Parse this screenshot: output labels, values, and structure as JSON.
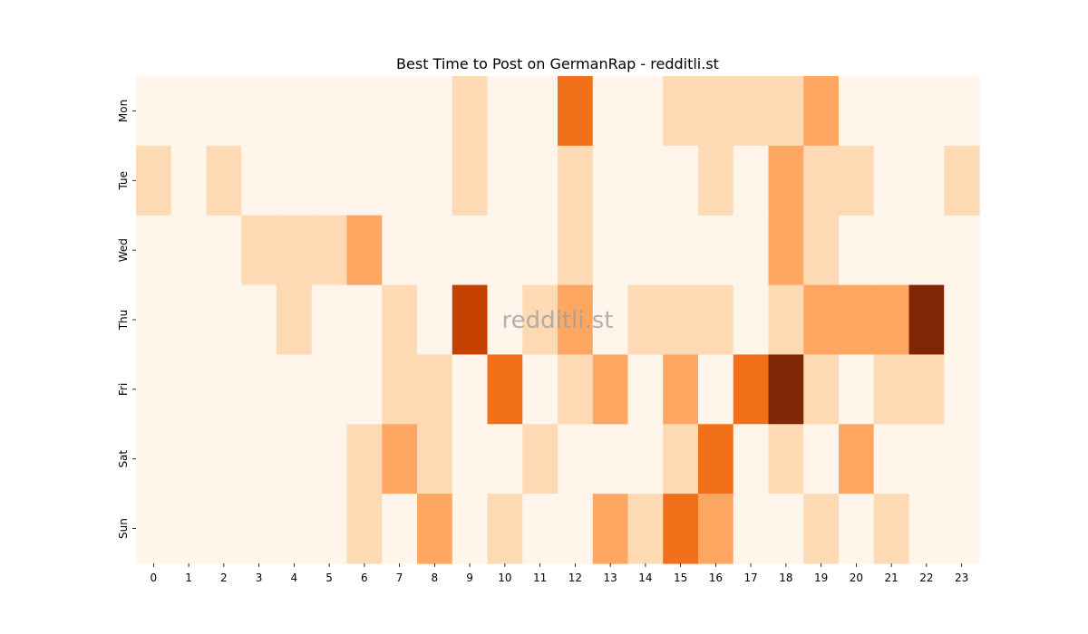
{
  "chart_data": {
    "type": "heatmap",
    "title": "Best Time to Post on GermanRap - redditli.st",
    "watermark": "redditli.st",
    "xlabel": "",
    "ylabel": "",
    "x_categories": [
      "0",
      "1",
      "2",
      "3",
      "4",
      "5",
      "6",
      "7",
      "8",
      "9",
      "10",
      "11",
      "12",
      "13",
      "14",
      "15",
      "16",
      "17",
      "18",
      "19",
      "20",
      "21",
      "22",
      "23"
    ],
    "y_categories": [
      "Mon",
      "Tue",
      "Wed",
      "Thu",
      "Fri",
      "Sat",
      "Sun"
    ],
    "value_range": [
      0,
      5
    ],
    "colormap": [
      "#fff5eb",
      "#fdd9b4",
      "#fda762",
      "#f3701b",
      "#c54102",
      "#7f2704"
    ],
    "values": [
      [
        0,
        0,
        0,
        0,
        0,
        0,
        0,
        0,
        0,
        1,
        0,
        0,
        3,
        0,
        0,
        1,
        1,
        1,
        1,
        2,
        0,
        0,
        0,
        0
      ],
      [
        1,
        0,
        1,
        0,
        0,
        0,
        0,
        0,
        0,
        1,
        0,
        0,
        1,
        0,
        0,
        0,
        1,
        0,
        2,
        1,
        1,
        0,
        0,
        1
      ],
      [
        0,
        0,
        0,
        1,
        1,
        1,
        2,
        0,
        0,
        0,
        0,
        0,
        1,
        0,
        0,
        0,
        0,
        0,
        2,
        1,
        0,
        0,
        0,
        0
      ],
      [
        0,
        0,
        0,
        0,
        1,
        0,
        0,
        1,
        0,
        4,
        0,
        1,
        2,
        0,
        1,
        1,
        1,
        0,
        1,
        2,
        2,
        2,
        5,
        0
      ],
      [
        0,
        0,
        0,
        0,
        0,
        0,
        0,
        1,
        1,
        0,
        3,
        0,
        1,
        2,
        0,
        2,
        0,
        3,
        5,
        1,
        0,
        1,
        1,
        0
      ],
      [
        0,
        0,
        0,
        0,
        0,
        0,
        1,
        2,
        1,
        0,
        0,
        1,
        0,
        0,
        0,
        1,
        3,
        0,
        1,
        0,
        2,
        0,
        0,
        0
      ],
      [
        0,
        0,
        0,
        0,
        0,
        0,
        1,
        0,
        2,
        0,
        1,
        0,
        0,
        2,
        1,
        3,
        2,
        0,
        0,
        1,
        0,
        1,
        0,
        0
      ]
    ]
  }
}
